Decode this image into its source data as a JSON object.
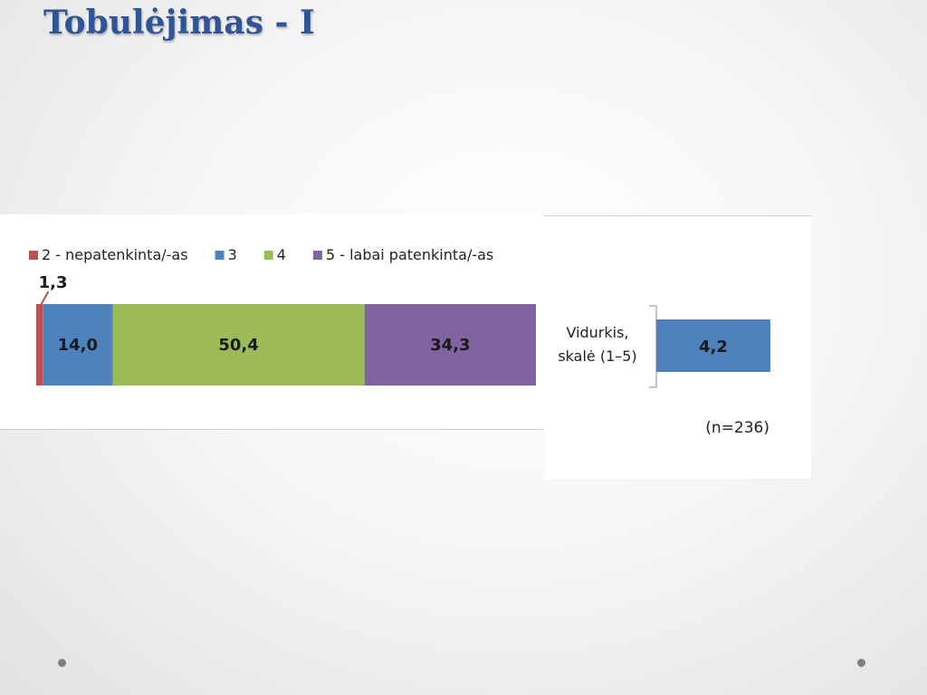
{
  "slide": {
    "title": "Tobulėjimas - I"
  },
  "colors": {
    "title": "#2f5597",
    "cat2": "#c0504d",
    "cat3": "#4f81bd",
    "cat4": "#9bbb59",
    "cat5": "#8064a2"
  },
  "chart_data": [
    {
      "type": "bar",
      "orientation": "horizontal",
      "stacked": true,
      "categories": [
        ""
      ],
      "series": [
        {
          "name": "2 - nepatenkinta/-as",
          "values": [
            1.3
          ],
          "label": "1,3",
          "color": "#c0504d"
        },
        {
          "name": "3",
          "values": [
            14.0
          ],
          "label": "14,0",
          "color": "#4f81bd"
        },
        {
          "name": "4",
          "values": [
            50.4
          ],
          "label": "50,4",
          "color": "#9bbb59"
        },
        {
          "name": "5 - labai patenkinta/-as",
          "values": [
            34.3
          ],
          "label": "34,3",
          "color": "#8064a2"
        }
      ],
      "xlim": [
        0,
        100
      ],
      "grid": false,
      "legend": "top-left"
    },
    {
      "type": "bar",
      "orientation": "horizontal",
      "categories": [
        "Vidurkis,\nskalė (1–5)"
      ],
      "category_lines": [
        "Vidurkis,",
        "skalė (1–5)"
      ],
      "values": [
        4.2
      ],
      "labels": [
        "4,2"
      ],
      "color": "#4f81bd",
      "note": "(n=236)"
    }
  ]
}
